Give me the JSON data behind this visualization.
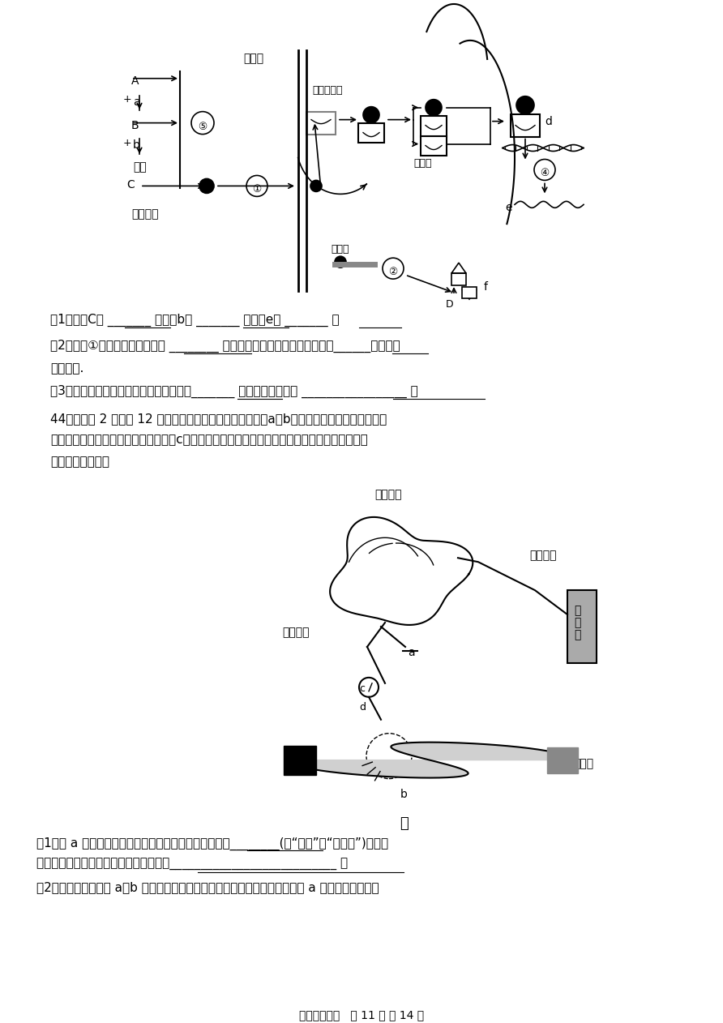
{
  "page_width": 8.92,
  "page_height": 12.62,
  "dpi": 100,
  "bg_color": "#ffffff",
  "footer_text": "高二生物试卷   第 11 页 共 14 页",
  "q1_text": "（1）结构C是 _______ ，物质b是 _______ ，物质e是 _______ 。",
  "q2_text": "（2）过程①通过细胞膜的方式是 ________ ，血液中的雌性激素的含量是通过______机制维持",
  "q2_cont": "相对稳定.",
  "q3_text": "（3）雌性激素的靶细胞能否为垂体细胞？_______ ，试简要说明理由 _________________ 。",
  "q44_text": "44、（每空 2 分，共 12 分）下图甲是反射弧结构模式图，a、b分别是放置在传出神经和骨骼",
  "q44_cont1": "肌上的电极，用于刺激神经和骨骼肌；c是放置在传出神经上的电流表，用于记录神经兴奋电位变",
  "q44_cont2": "化。请分析回答：",
  "q44_q1": "（1）用 a 刺激神经，产生的兴奋传到骨骼肌引起的收缩________(填“属于”或“不属于”)反射。",
  "q44_q1b": "兴奋在神经元之间只能单向传递的原因是___________________________ 。",
  "q44_q2": "（2）正常时，分别用 a、b 刺激神经和骨骼肌，会引起骨骼肌收缩。某同学用 a 刺激神经，发现骨"
}
